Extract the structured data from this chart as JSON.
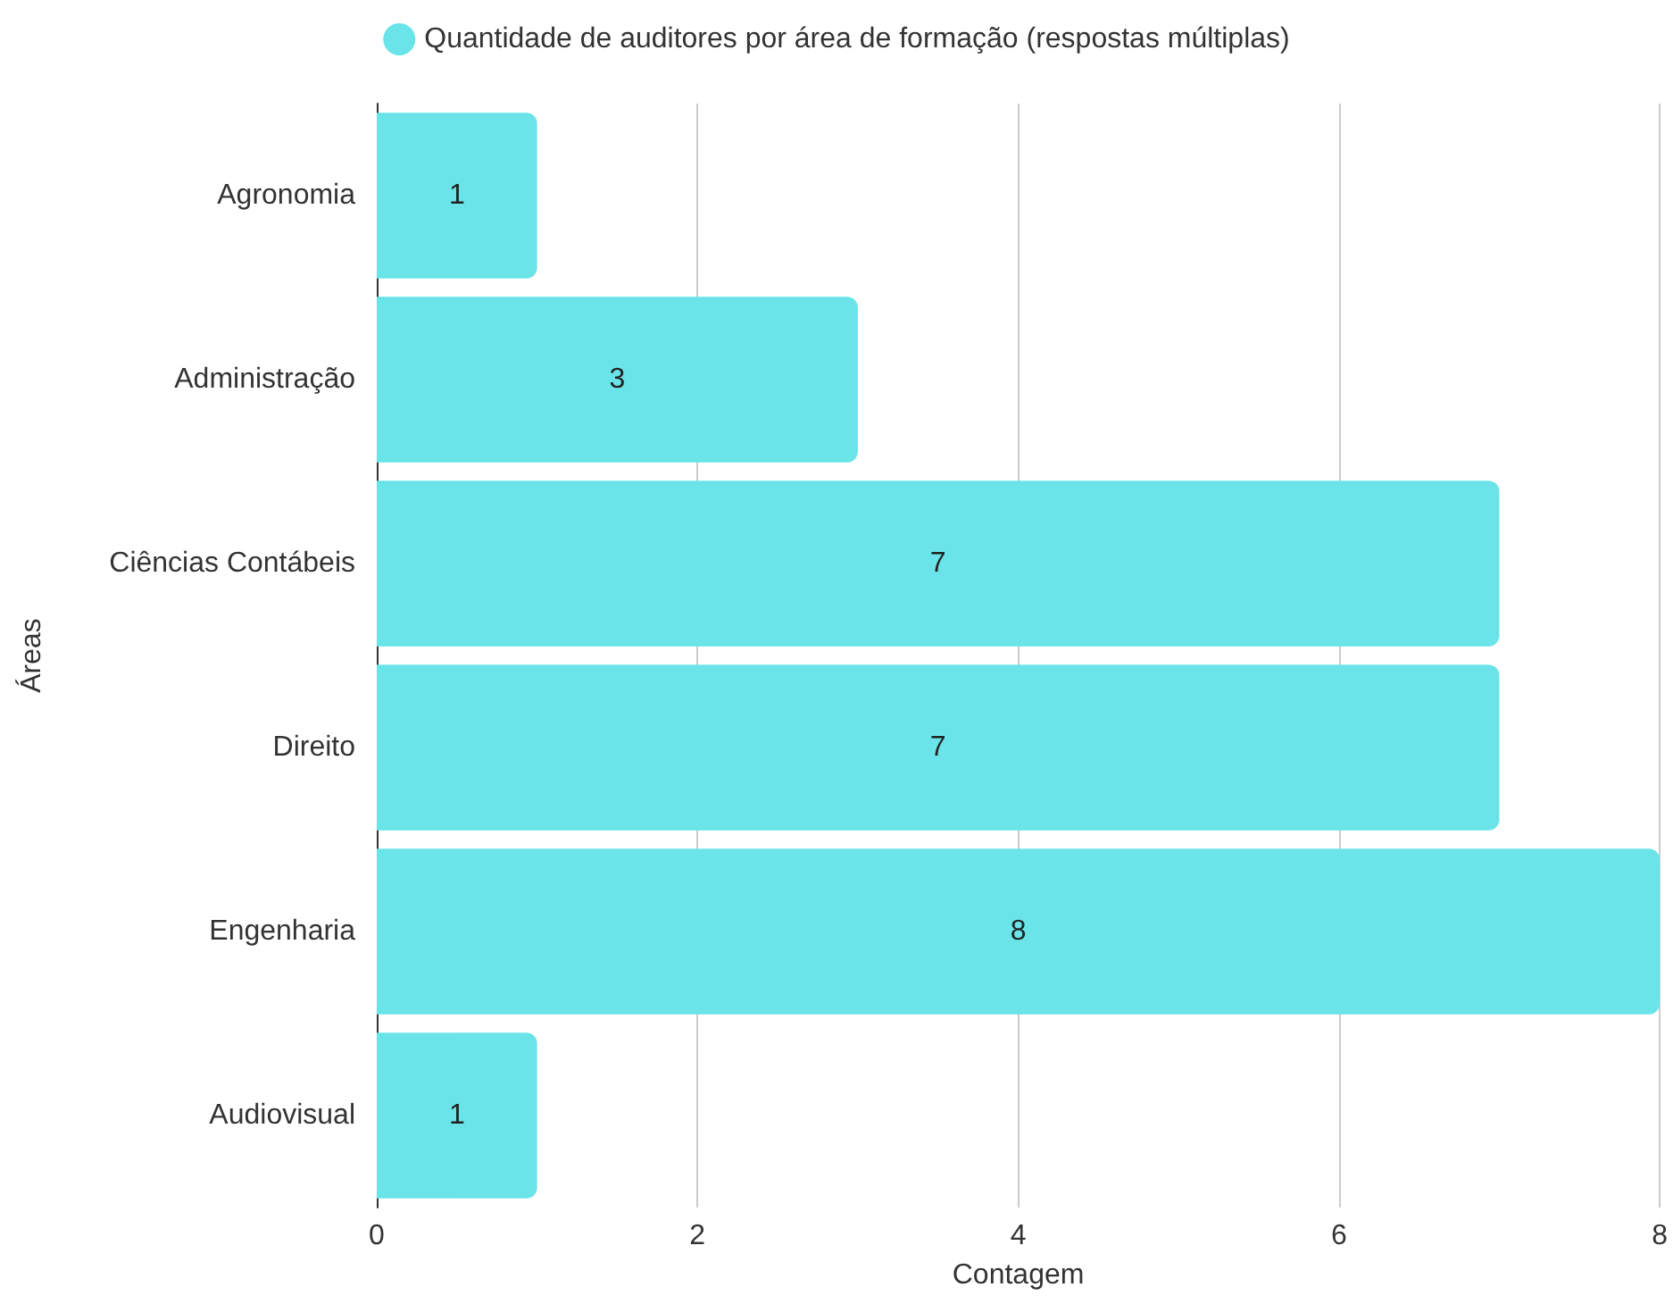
{
  "chart_data": {
    "type": "bar",
    "orientation": "horizontal",
    "xlabel": "Contagem",
    "ylabel": "Áreas",
    "categories": [
      "Agronomia",
      "Administração",
      "Ciências Contábeis",
      "Direito",
      "Engenharia",
      "Audiovisual"
    ],
    "series": [
      {
        "name": "Quantidade de auditores por área de formação (respostas múltiplas)",
        "color": "#6ae4e8",
        "values": [
          1,
          3,
          7,
          7,
          8,
          1
        ]
      }
    ],
    "xlim": [
      0,
      8
    ],
    "xticks": [
      0,
      2,
      4,
      6,
      8
    ],
    "grid": "x",
    "legend": "top",
    "data_labels": true
  }
}
